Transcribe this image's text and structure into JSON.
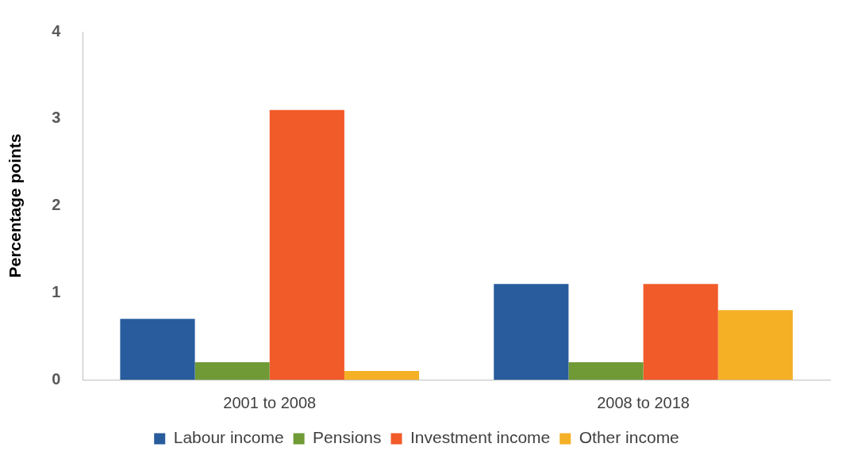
{
  "chart_data": {
    "type": "bar",
    "ylabel": "Percentage points",
    "categories": [
      "2001 to 2008",
      "2008 to 2018"
    ],
    "series": [
      {
        "name": "Labour income",
        "color": "#285c9c",
        "values": [
          0.7,
          1.1
        ]
      },
      {
        "name": "Pensions",
        "color": "#6f9a35",
        "values": [
          0.2,
          0.2
        ]
      },
      {
        "name": "Investment income",
        "color": "#f15a29",
        "values": [
          3.1,
          1.1
        ]
      },
      {
        "name": "Other income",
        "color": "#f5b026",
        "values": [
          0.1,
          0.8
        ]
      }
    ],
    "ylim": [
      0,
      4
    ],
    "yticks": [
      0,
      1,
      2,
      3,
      4
    ],
    "grid": false,
    "legend": "bottom"
  }
}
